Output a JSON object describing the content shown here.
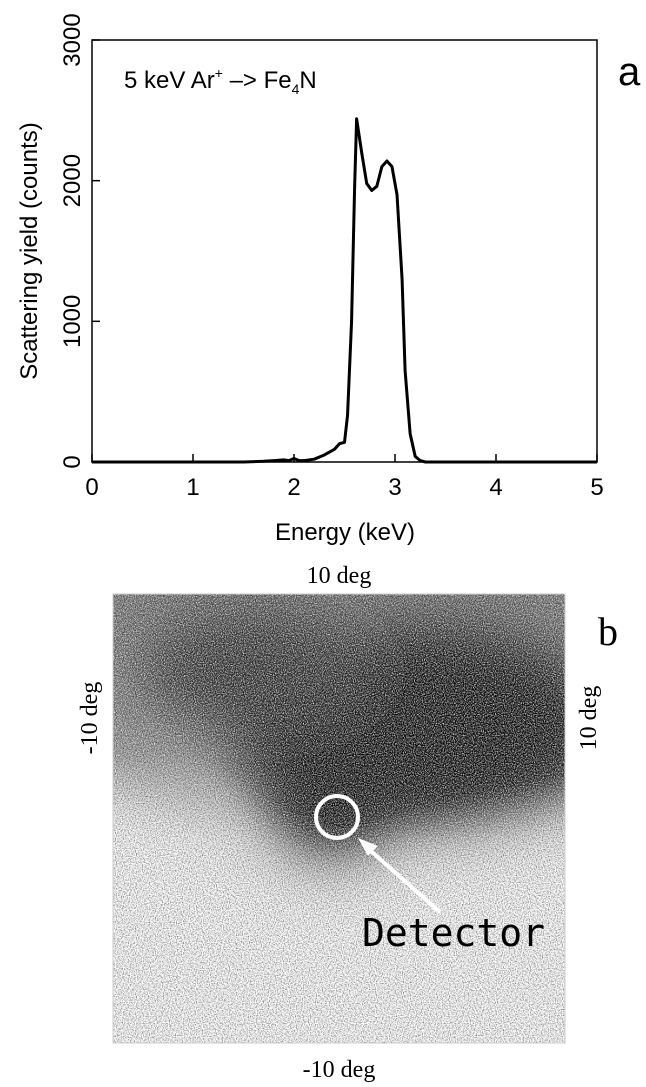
{
  "chart_data": {
    "type": "line",
    "annotation": {
      "pre": "5 keV Ar",
      "sup": "+",
      "mid": " –> Fe",
      "sub": "4",
      "post": "N"
    },
    "panel_label": "a",
    "x_label": "Energy (keV)",
    "y_label": "Scattering yield (counts)",
    "x": [
      0,
      0.5,
      1,
      1.5,
      1.7,
      1.8,
      1.9,
      1.95,
      2.0,
      2.05,
      2.1,
      2.2,
      2.3,
      2.4,
      2.45,
      2.5,
      2.53,
      2.57,
      2.6,
      2.62,
      2.67,
      2.72,
      2.77,
      2.82,
      2.87,
      2.92,
      2.97,
      3.02,
      3.07,
      3.1,
      3.15,
      3.2,
      3.25,
      3.3,
      3.5,
      4,
      4.5,
      5
    ],
    "values": [
      0,
      0,
      0,
      0,
      5,
      10,
      15,
      10,
      25,
      10,
      10,
      20,
      50,
      90,
      130,
      140,
      330,
      1000,
      1950,
      2440,
      2200,
      1980,
      1930,
      1960,
      2100,
      2140,
      2100,
      1900,
      1300,
      650,
      200,
      40,
      10,
      0,
      0,
      0,
      0,
      0
    ],
    "color": "#000000",
    "xlim": [
      0,
      5
    ],
    "ylim": [
      0,
      3000
    ],
    "xticks": [
      0,
      1,
      2,
      3,
      4,
      5
    ],
    "yticks": [
      0,
      1000,
      2000,
      3000
    ]
  },
  "image": {
    "panel_label": "b",
    "top_label": "10 deg",
    "bottom_label": "-10 deg",
    "left_label": "-10 deg",
    "right_label": "10 deg",
    "annotation": "Detector"
  }
}
